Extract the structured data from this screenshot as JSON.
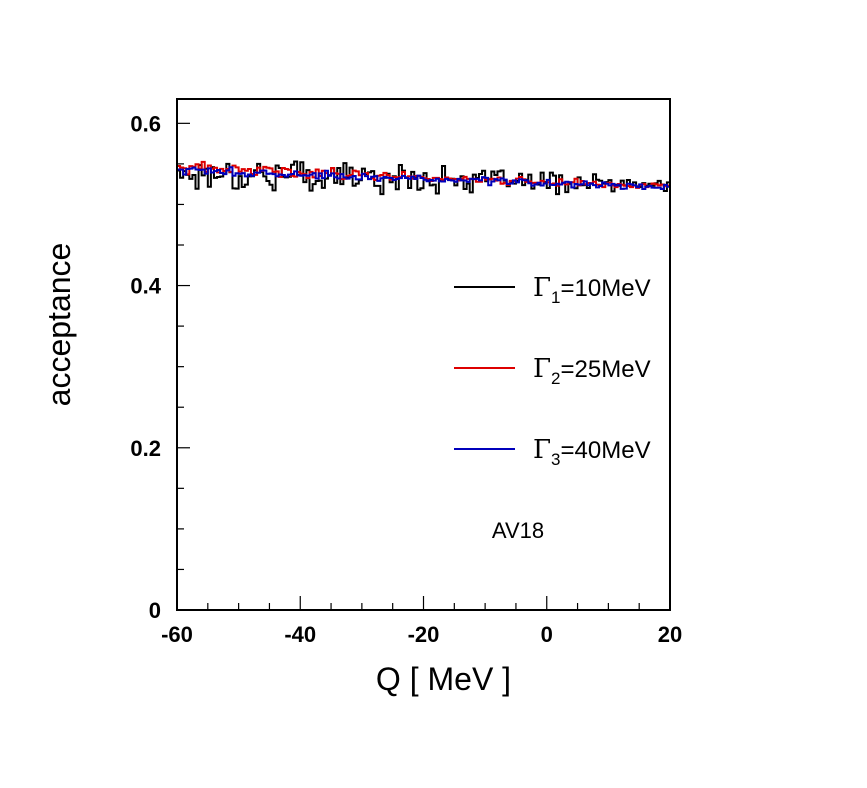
{
  "chart_data": {
    "type": "line",
    "step": true,
    "title": "",
    "xlabel": "Q [ MeV ]",
    "ylabel": "acceptance",
    "xlim": [
      -60,
      20
    ],
    "ylim": [
      0,
      0.63
    ],
    "xticks": [
      -60,
      -40,
      -20,
      0,
      20
    ],
    "xtick_labels": [
      "-60",
      "-40",
      "-20",
      "0",
      "20"
    ],
    "yticks": [
      0,
      0.2,
      0.4,
      0.6
    ],
    "ytick_labels": [
      "0",
      "0.2",
      "0.4",
      "0.6"
    ],
    "annotation": "AV18",
    "bin_width": 0.5,
    "series": [
      {
        "name": "Γ1=10MeV",
        "legend": {
          "symbol": "Γ",
          "sub": "1",
          "text": "=10MeV"
        },
        "color": "#000000",
        "mean_start": 0.54,
        "mean_end": 0.523,
        "noise_start": 0.018,
        "noise_end": 0.007,
        "seed": 17
      },
      {
        "name": "Γ2=25MeV",
        "legend": {
          "symbol": "Γ",
          "sub": "2",
          "text": "=25MeV"
        },
        "color": "#dd0000",
        "mean_start": 0.545,
        "mean_end": 0.522,
        "noise_start": 0.006,
        "noise_end": 0.003,
        "seed": 41
      },
      {
        "name": "Γ3=40MeV",
        "legend": {
          "symbol": "Γ",
          "sub": "3",
          "text": "=40MeV"
        },
        "color": "#0000bb",
        "mean_start": 0.542,
        "mean_end": 0.521,
        "noise_start": 0.004,
        "noise_end": 0.003,
        "seed": 73
      }
    ]
  }
}
